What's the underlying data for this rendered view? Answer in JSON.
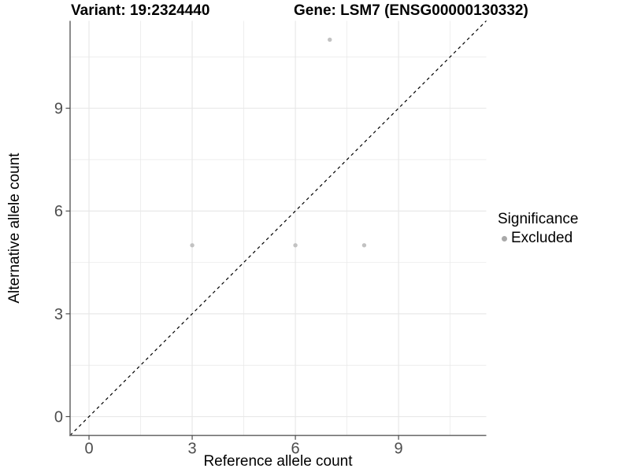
{
  "header": {
    "variant_title": "Variant: 19:2324440",
    "gene_title": "Gene: LSM7 (ENSG00000130332)"
  },
  "legend": {
    "title": "Significance",
    "items": [
      {
        "label": "Excluded",
        "color": "#a9a9a9"
      }
    ]
  },
  "chart_data": {
    "type": "scatter",
    "title_left": "Variant: 19:2324440",
    "title_right": "Gene: LSM7 (ENSG00000130332)",
    "xlabel": "Reference allele count",
    "ylabel": "Alternative allele count",
    "xlim": [
      -0.55,
      11.55
    ],
    "ylim": [
      -0.55,
      11.55
    ],
    "x_major_ticks": [
      0,
      3,
      6,
      9
    ],
    "y_major_ticks": [
      0,
      3,
      6,
      9
    ],
    "x_minor_gridlines": [
      1.5,
      4.5,
      7.5,
      10.5
    ],
    "y_minor_gridlines": [
      1.5,
      4.5,
      7.5,
      10.5
    ],
    "grid": true,
    "legend_position": "right",
    "series": [
      {
        "name": "Excluded",
        "color": "#c2c2c2",
        "points": [
          [
            3,
            5
          ],
          [
            6,
            5
          ],
          [
            8,
            5
          ],
          [
            7,
            11
          ]
        ]
      }
    ],
    "reference_line": {
      "type": "identity",
      "style": "dashed",
      "color": "#000000"
    }
  },
  "colors": {
    "gridline": "#e8e8e8",
    "axis_line": "#666666",
    "tick": "#4d4d4d",
    "tick_label": "#4d4d4d",
    "text": "#000000"
  }
}
